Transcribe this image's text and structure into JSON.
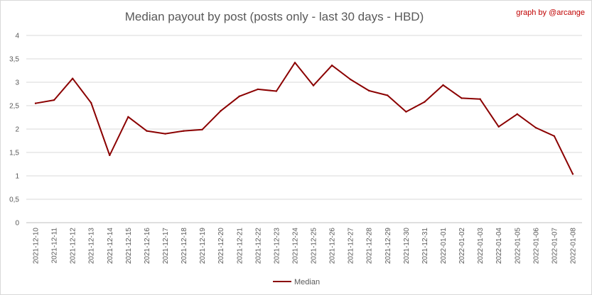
{
  "chart_data": {
    "type": "line",
    "title": "Median payout by post (posts only - last 30 days - HBD)",
    "credit": "graph by @arcange",
    "xlabel": "",
    "ylabel": "",
    "ylim": [
      0,
      4
    ],
    "yticks": [
      "0",
      "0,5",
      "1",
      "1,5",
      "2",
      "2,5",
      "3",
      "3,5",
      "4"
    ],
    "grid": true,
    "legend_position": "bottom",
    "x": [
      "2021-12-10",
      "2021-12-11",
      "2021-12-12",
      "2021-12-13",
      "2021-12-14",
      "2021-12-15",
      "2021-12-16",
      "2021-12-17",
      "2021-12-18",
      "2021-12-19",
      "2021-12-20",
      "2021-12-21",
      "2021-12-22",
      "2021-12-23",
      "2021-12-24",
      "2021-12-25",
      "2021-12-26",
      "2021-12-27",
      "2021-12-28",
      "2021-12-29",
      "2021-12-30",
      "2021-12-31",
      "2022-01-01",
      "2022-01-02",
      "2022-01-03",
      "2022-01-04",
      "2022-01-05",
      "2022-01-06",
      "2022-01-07",
      "2022-01-08"
    ],
    "series": [
      {
        "name": "Median",
        "color": "#8b0000",
        "values": [
          2.55,
          2.62,
          3.08,
          2.56,
          1.44,
          2.26,
          1.96,
          1.9,
          1.96,
          1.99,
          2.39,
          2.7,
          2.85,
          2.81,
          3.42,
          2.93,
          3.36,
          3.06,
          2.82,
          2.72,
          2.37,
          2.58,
          2.94,
          2.66,
          2.64,
          2.05,
          2.32,
          2.03,
          1.85,
          1.04
        ]
      }
    ]
  }
}
